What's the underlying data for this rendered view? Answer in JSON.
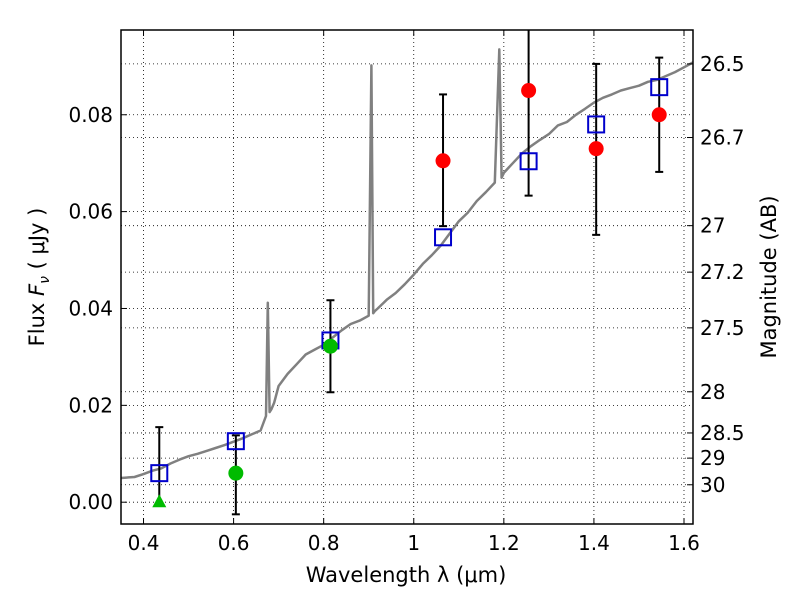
{
  "chart_data": {
    "type": "scatter",
    "xlabel": "Wavelength  λ (μm)",
    "ylabel": "Flux  F_ν  ( μJy )",
    "ylabel_parts": {
      "prefix": "Flux  ",
      "symbol": "F",
      "subscript": "ν",
      "unit": "  ( μJy )"
    },
    "y2label": "Magnitude (AB)",
    "xlim": [
      0.35,
      1.62
    ],
    "ylim": [
      -0.0045,
      0.0975
    ],
    "grid": true,
    "x_ticks": [
      0.4,
      0.6,
      0.8,
      1.0,
      1.2,
      1.4,
      1.6
    ],
    "x_tick_labels": [
      "0.4",
      "0.6",
      "0.8",
      "1",
      "1.2",
      "1.4",
      "1.6"
    ],
    "y_ticks": [
      0.0,
      0.02,
      0.04,
      0.06,
      0.08
    ],
    "y_tick_labels": [
      "0.00",
      "0.02",
      "0.04",
      "0.06",
      "0.08"
    ],
    "y2_ticks": [
      {
        "label": "26.5",
        "flux": 0.0905
      },
      {
        "label": "26.7",
        "flux": 0.0753
      },
      {
        "label": "27",
        "flux": 0.0571
      },
      {
        "label": "27.2",
        "flux": 0.0475
      },
      {
        "label": "27.5",
        "flux": 0.036
      },
      {
        "label": "28",
        "flux": 0.0228
      },
      {
        "label": "28.5",
        "flux": 0.0143
      },
      {
        "label": "29",
        "flux": 0.0091
      },
      {
        "label": "30",
        "flux": 0.0036
      }
    ],
    "series": [
      {
        "kind": "line",
        "color": "#808080",
        "x": [
          0.35,
          0.38,
          0.4,
          0.42,
          0.44,
          0.46,
          0.48,
          0.5,
          0.52,
          0.54,
          0.56,
          0.58,
          0.6,
          0.62,
          0.64,
          0.66,
          0.672,
          0.676,
          0.68,
          0.684,
          0.69,
          0.7,
          0.72,
          0.74,
          0.76,
          0.78,
          0.8,
          0.82,
          0.84,
          0.86,
          0.88,
          0.9,
          0.906,
          0.91,
          0.914,
          0.92,
          0.94,
          0.96,
          0.98,
          1.0,
          1.02,
          1.04,
          1.06,
          1.08,
          1.1,
          1.12,
          1.14,
          1.16,
          1.18,
          1.19,
          1.195,
          1.2,
          1.21,
          1.22,
          1.24,
          1.26,
          1.28,
          1.3,
          1.32,
          1.34,
          1.36,
          1.38,
          1.4,
          1.42,
          1.44,
          1.46,
          1.48,
          1.5,
          1.52,
          1.54,
          1.56,
          1.58,
          1.6,
          1.62
        ],
        "y": [
          0.005,
          0.0052,
          0.0058,
          0.0065,
          0.007,
          0.008,
          0.0088,
          0.0095,
          0.01,
          0.0106,
          0.0112,
          0.0118,
          0.0125,
          0.0132,
          0.014,
          0.0148,
          0.0178,
          0.0412,
          0.0186,
          0.0192,
          0.0205,
          0.024,
          0.0265,
          0.0285,
          0.0305,
          0.0315,
          0.0325,
          0.034,
          0.0355,
          0.0368,
          0.0375,
          0.0385,
          0.0902,
          0.039,
          0.0395,
          0.04,
          0.0418,
          0.0432,
          0.045,
          0.047,
          0.0492,
          0.051,
          0.053,
          0.0555,
          0.058,
          0.0598,
          0.0622,
          0.064,
          0.066,
          0.0935,
          0.067,
          0.068,
          0.069,
          0.07,
          0.072,
          0.0735,
          0.0748,
          0.076,
          0.0778,
          0.0785,
          0.08,
          0.0812,
          0.0825,
          0.0835,
          0.0842,
          0.085,
          0.0855,
          0.086,
          0.0868,
          0.0872,
          0.088,
          0.0888,
          0.0898,
          0.0908
        ]
      },
      {
        "kind": "open-square",
        "color": "#0000cc",
        "x": [
          0.435,
          0.605,
          0.815,
          1.065,
          1.255,
          1.405,
          1.545
        ],
        "y": [
          0.006,
          0.0126,
          0.0334,
          0.0547,
          0.0704,
          0.078,
          0.0857
        ]
      },
      {
        "kind": "circle",
        "color": "#ff0000",
        "x": [
          1.065,
          1.255,
          1.405,
          1.545
        ],
        "y": [
          0.0705,
          0.085,
          0.073,
          0.08
        ],
        "err_low": [
          0.0135,
          0.0217,
          0.0178,
          0.0118
        ],
        "err_high": [
          0.0137,
          0.02,
          0.0175,
          0.0118
        ]
      },
      {
        "kind": "circle",
        "color": "#00bb00",
        "x": [
          0.605,
          0.815
        ],
        "y": [
          0.006,
          0.0322
        ],
        "err_low": [
          0.0085,
          0.0095
        ],
        "err_high": [
          0.0078,
          0.0095
        ]
      },
      {
        "kind": "triangle",
        "color": "#00bb00",
        "x": [
          0.435
        ],
        "y": [
          0.0
        ],
        "err_low": [
          0.0
        ],
        "err_high": [
          0.0155
        ]
      }
    ]
  }
}
